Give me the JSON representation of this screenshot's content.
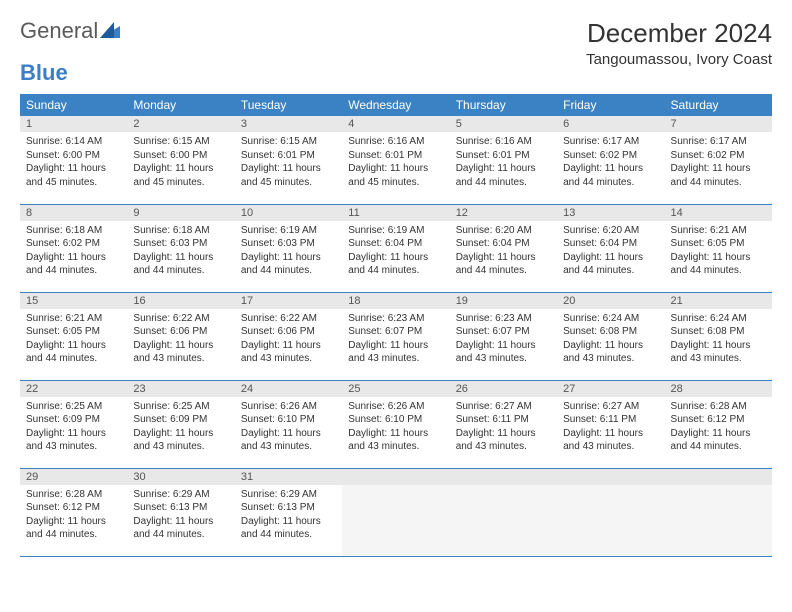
{
  "brand": {
    "part1": "General",
    "part2": "Blue"
  },
  "title": "December 2024",
  "location": "Tangoumassou, Ivory Coast",
  "colors": {
    "header_bg": "#3b82c4",
    "header_text": "#ffffff",
    "daynum_bg": "#e8e8e8",
    "row_divider": "#3b82c4",
    "page_bg": "#ffffff",
    "text": "#333333"
  },
  "typography": {
    "title_fontsize": 26,
    "location_fontsize": 15,
    "dayhead_fontsize": 12,
    "daynum_fontsize": 11,
    "body_fontsize": 10
  },
  "weekdays": [
    "Sunday",
    "Monday",
    "Tuesday",
    "Wednesday",
    "Thursday",
    "Friday",
    "Saturday"
  ],
  "days": [
    {
      "n": "1",
      "sunrise": "6:14 AM",
      "sunset": "6:00 PM",
      "daylight": "11 hours and 45 minutes."
    },
    {
      "n": "2",
      "sunrise": "6:15 AM",
      "sunset": "6:00 PM",
      "daylight": "11 hours and 45 minutes."
    },
    {
      "n": "3",
      "sunrise": "6:15 AM",
      "sunset": "6:01 PM",
      "daylight": "11 hours and 45 minutes."
    },
    {
      "n": "4",
      "sunrise": "6:16 AM",
      "sunset": "6:01 PM",
      "daylight": "11 hours and 45 minutes."
    },
    {
      "n": "5",
      "sunrise": "6:16 AM",
      "sunset": "6:01 PM",
      "daylight": "11 hours and 44 minutes."
    },
    {
      "n": "6",
      "sunrise": "6:17 AM",
      "sunset": "6:02 PM",
      "daylight": "11 hours and 44 minutes."
    },
    {
      "n": "7",
      "sunrise": "6:17 AM",
      "sunset": "6:02 PM",
      "daylight": "11 hours and 44 minutes."
    },
    {
      "n": "8",
      "sunrise": "6:18 AM",
      "sunset": "6:02 PM",
      "daylight": "11 hours and 44 minutes."
    },
    {
      "n": "9",
      "sunrise": "6:18 AM",
      "sunset": "6:03 PM",
      "daylight": "11 hours and 44 minutes."
    },
    {
      "n": "10",
      "sunrise": "6:19 AM",
      "sunset": "6:03 PM",
      "daylight": "11 hours and 44 minutes."
    },
    {
      "n": "11",
      "sunrise": "6:19 AM",
      "sunset": "6:04 PM",
      "daylight": "11 hours and 44 minutes."
    },
    {
      "n": "12",
      "sunrise": "6:20 AM",
      "sunset": "6:04 PM",
      "daylight": "11 hours and 44 minutes."
    },
    {
      "n": "13",
      "sunrise": "6:20 AM",
      "sunset": "6:04 PM",
      "daylight": "11 hours and 44 minutes."
    },
    {
      "n": "14",
      "sunrise": "6:21 AM",
      "sunset": "6:05 PM",
      "daylight": "11 hours and 44 minutes."
    },
    {
      "n": "15",
      "sunrise": "6:21 AM",
      "sunset": "6:05 PM",
      "daylight": "11 hours and 44 minutes."
    },
    {
      "n": "16",
      "sunrise": "6:22 AM",
      "sunset": "6:06 PM",
      "daylight": "11 hours and 43 minutes."
    },
    {
      "n": "17",
      "sunrise": "6:22 AM",
      "sunset": "6:06 PM",
      "daylight": "11 hours and 43 minutes."
    },
    {
      "n": "18",
      "sunrise": "6:23 AM",
      "sunset": "6:07 PM",
      "daylight": "11 hours and 43 minutes."
    },
    {
      "n": "19",
      "sunrise": "6:23 AM",
      "sunset": "6:07 PM",
      "daylight": "11 hours and 43 minutes."
    },
    {
      "n": "20",
      "sunrise": "6:24 AM",
      "sunset": "6:08 PM",
      "daylight": "11 hours and 43 minutes."
    },
    {
      "n": "21",
      "sunrise": "6:24 AM",
      "sunset": "6:08 PM",
      "daylight": "11 hours and 43 minutes."
    },
    {
      "n": "22",
      "sunrise": "6:25 AM",
      "sunset": "6:09 PM",
      "daylight": "11 hours and 43 minutes."
    },
    {
      "n": "23",
      "sunrise": "6:25 AM",
      "sunset": "6:09 PM",
      "daylight": "11 hours and 43 minutes."
    },
    {
      "n": "24",
      "sunrise": "6:26 AM",
      "sunset": "6:10 PM",
      "daylight": "11 hours and 43 minutes."
    },
    {
      "n": "25",
      "sunrise": "6:26 AM",
      "sunset": "6:10 PM",
      "daylight": "11 hours and 43 minutes."
    },
    {
      "n": "26",
      "sunrise": "6:27 AM",
      "sunset": "6:11 PM",
      "daylight": "11 hours and 43 minutes."
    },
    {
      "n": "27",
      "sunrise": "6:27 AM",
      "sunset": "6:11 PM",
      "daylight": "11 hours and 43 minutes."
    },
    {
      "n": "28",
      "sunrise": "6:28 AM",
      "sunset": "6:12 PM",
      "daylight": "11 hours and 44 minutes."
    },
    {
      "n": "29",
      "sunrise": "6:28 AM",
      "sunset": "6:12 PM",
      "daylight": "11 hours and 44 minutes."
    },
    {
      "n": "30",
      "sunrise": "6:29 AM",
      "sunset": "6:13 PM",
      "daylight": "11 hours and 44 minutes."
    },
    {
      "n": "31",
      "sunrise": "6:29 AM",
      "sunset": "6:13 PM",
      "daylight": "11 hours and 44 minutes."
    }
  ],
  "labels": {
    "sunrise": "Sunrise:",
    "sunset": "Sunset:",
    "daylight": "Daylight:"
  }
}
